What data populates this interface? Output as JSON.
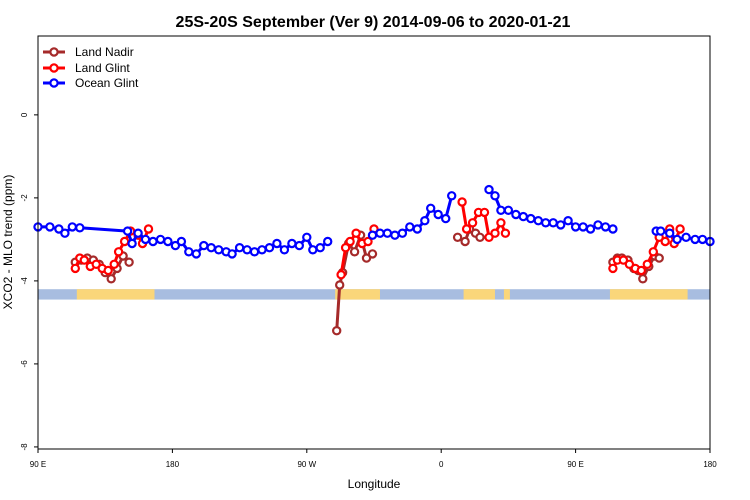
{
  "chart_data": {
    "type": "line",
    "title": "25S-20S September (Ver 9)   2014-09-06 to 2020-01-21",
    "xlabel": "Longitude",
    "ylabel": "XCO2 - MLO trend (ppm)",
    "xlim": [
      90,
      540
    ],
    "ylim": [
      -8.05,
      1.9
    ],
    "x_ticks": [
      {
        "value": 90,
        "label": "90 E"
      },
      {
        "value": 180,
        "label": "180"
      },
      {
        "value": 270,
        "label": "90 W"
      },
      {
        "value": 360,
        "label": "0"
      },
      {
        "value": 450,
        "label": "90 E"
      },
      {
        "value": 540,
        "label": "180"
      }
    ],
    "y_ticks": [
      {
        "value": 0,
        "label": "0"
      },
      {
        "value": -2,
        "label": "-2"
      },
      {
        "value": -4,
        "label": "-4"
      },
      {
        "value": -6,
        "label": "-6"
      },
      {
        "value": -8,
        "label": "-8"
      }
    ],
    "map_strip": {
      "ocean_color": "#a8bde0",
      "land_color": "#fad67a",
      "y_range": [
        -4.45,
        -4.2
      ],
      "land_segments": [
        [
          116,
          168
        ],
        [
          289,
          319
        ],
        [
          375,
          396
        ],
        [
          402,
          406
        ],
        [
          473,
          525
        ]
      ]
    },
    "series": [
      {
        "name": "Land Nadir",
        "color": "#a52a2a",
        "segments": [
          [
            [
              115,
              -3.55
            ],
            [
              119,
              -3.5
            ],
            [
              123,
              -3.45
            ],
            [
              127,
              -3.5
            ],
            [
              131,
              -3.6
            ],
            [
              135,
              -3.8
            ],
            [
              139,
              -3.95
            ],
            [
              143,
              -3.7
            ],
            [
              147,
              -3.4
            ],
            [
              151,
              -3.55
            ]
          ],
          [
            [
              290,
              -5.2
            ],
            [
              292,
              -4.1
            ],
            [
              294,
              -3.8
            ],
            [
              298,
              -3.1
            ],
            [
              302,
              -3.3
            ],
            [
              306,
              -2.9
            ],
            [
              310,
              -3.45
            ],
            [
              314,
              -3.35
            ]
          ],
          [
            [
              371,
              -2.95
            ],
            [
              376,
              -3.05
            ],
            [
              379,
              -2.75
            ],
            [
              383,
              -2.85
            ],
            [
              386,
              -2.95
            ]
          ],
          [
            [
              475,
              -3.55
            ],
            [
              478,
              -3.45
            ],
            [
              481,
              -3.45
            ],
            [
              485,
              -3.5
            ],
            [
              489,
              -3.7
            ],
            [
              492,
              -3.75
            ],
            [
              495,
              -3.95
            ],
            [
              499,
              -3.65
            ],
            [
              503,
              -3.4
            ],
            [
              506,
              -3.45
            ]
          ]
        ]
      },
      {
        "name": "Land Glint",
        "color": "#ff0000",
        "segments": [
          [
            [
              115,
              -3.7
            ],
            [
              118,
              -3.45
            ],
            [
              121,
              -3.5
            ],
            [
              125,
              -3.65
            ],
            [
              129,
              -3.6
            ],
            [
              133,
              -3.7
            ],
            [
              137,
              -3.75
            ],
            [
              141,
              -3.6
            ],
            [
              144,
              -3.3
            ],
            [
              148,
              -3.05
            ],
            [
              152,
              -2.8
            ],
            [
              157,
              -2.9
            ],
            [
              160,
              -3.1
            ],
            [
              164,
              -2.75
            ]
          ],
          [
            [
              293,
              -3.85
            ],
            [
              296,
              -3.2
            ],
            [
              299,
              -3.05
            ],
            [
              303,
              -2.85
            ],
            [
              307,
              -3.1
            ],
            [
              311,
              -3.05
            ],
            [
              315,
              -2.75
            ]
          ],
          [
            [
              374,
              -2.1
            ],
            [
              377,
              -2.75
            ],
            [
              381,
              -2.6
            ],
            [
              385,
              -2.35
            ],
            [
              389,
              -2.35
            ],
            [
              392,
              -2.95
            ],
            [
              396,
              -2.85
            ],
            [
              400,
              -2.6
            ],
            [
              403,
              -2.85
            ]
          ],
          [
            [
              475,
              -3.7
            ],
            [
              478,
              -3.5
            ],
            [
              482,
              -3.5
            ],
            [
              486,
              -3.6
            ],
            [
              490,
              -3.7
            ],
            [
              494,
              -3.75
            ],
            [
              498,
              -3.6
            ],
            [
              502,
              -3.3
            ],
            [
              506,
              -2.95
            ],
            [
              510,
              -3.05
            ],
            [
              513,
              -2.75
            ],
            [
              516,
              -3.1
            ],
            [
              520,
              -2.75
            ]
          ]
        ]
      },
      {
        "name": "Ocean Glint",
        "color": "#0000ff",
        "segments": [
          [
            [
              90,
              -2.7
            ],
            [
              98,
              -2.7
            ],
            [
              104,
              -2.75
            ],
            [
              108,
              -2.85
            ],
            [
              113,
              -2.7
            ],
            [
              118,
              -2.72
            ],
            [
              150,
              -2.8
            ],
            [
              153,
              -3.1
            ],
            [
              157,
              -2.85
            ],
            [
              162,
              -3.0
            ],
            [
              167,
              -3.05
            ],
            [
              172,
              -3.0
            ],
            [
              177,
              -3.05
            ],
            [
              182,
              -3.15
            ],
            [
              186,
              -3.05
            ],
            [
              191,
              -3.3
            ],
            [
              196,
              -3.35
            ],
            [
              201,
              -3.15
            ],
            [
              206,
              -3.2
            ],
            [
              211,
              -3.25
            ],
            [
              216,
              -3.3
            ],
            [
              220,
              -3.35
            ],
            [
              225,
              -3.2
            ],
            [
              230,
              -3.25
            ],
            [
              235,
              -3.3
            ],
            [
              240,
              -3.25
            ],
            [
              245,
              -3.2
            ],
            [
              250,
              -3.1
            ],
            [
              255,
              -3.25
            ],
            [
              260,
              -3.1
            ],
            [
              265,
              -3.15
            ],
            [
              270,
              -2.95
            ],
            [
              274,
              -3.25
            ],
            [
              279,
              -3.2
            ],
            [
              284,
              -3.05
            ]
          ],
          [
            [
              314,
              -2.9
            ],
            [
              319,
              -2.85
            ],
            [
              324,
              -2.85
            ],
            [
              329,
              -2.9
            ],
            [
              334,
              -2.85
            ],
            [
              339,
              -2.7
            ],
            [
              344,
              -2.75
            ],
            [
              349,
              -2.55
            ],
            [
              353,
              -2.25
            ],
            [
              358,
              -2.4
            ],
            [
              363,
              -2.5
            ],
            [
              367,
              -1.95
            ]
          ],
          [
            [
              392,
              -1.8
            ],
            [
              396,
              -1.95
            ],
            [
              400,
              -2.3
            ],
            [
              405,
              -2.3
            ],
            [
              410,
              -2.4
            ],
            [
              415,
              -2.45
            ],
            [
              420,
              -2.5
            ],
            [
              425,
              -2.55
            ],
            [
              430,
              -2.6
            ],
            [
              435,
              -2.6
            ],
            [
              440,
              -2.65
            ],
            [
              445,
              -2.55
            ],
            [
              450,
              -2.7
            ],
            [
              455,
              -2.7
            ],
            [
              460,
              -2.75
            ],
            [
              465,
              -2.65
            ],
            [
              470,
              -2.7
            ],
            [
              475,
              -2.75
            ]
          ],
          [
            [
              504,
              -2.8
            ],
            [
              507,
              -2.8
            ],
            [
              513,
              -2.85
            ],
            [
              518,
              -3.0
            ],
            [
              524,
              -2.95
            ],
            [
              530,
              -3.0
            ],
            [
              535,
              -3.0
            ],
            [
              540,
              -3.05
            ]
          ]
        ]
      }
    ],
    "legend": {
      "position": "top-left",
      "entries": [
        "Land Nadir",
        "Land Glint",
        "Ocean Glint"
      ]
    }
  }
}
